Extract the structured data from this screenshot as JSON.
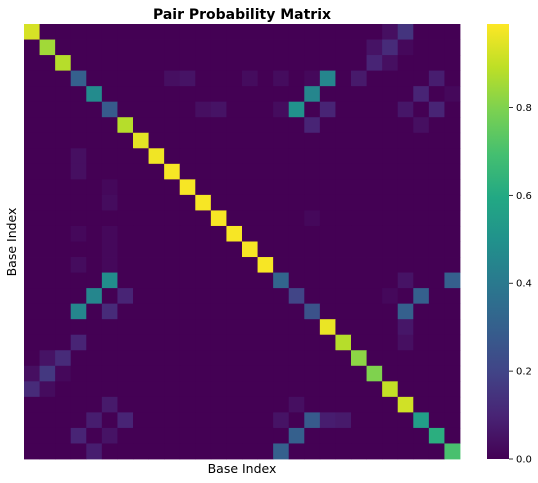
{
  "chart_data": {
    "type": "heatmap",
    "title": "Pair Probability Matrix",
    "xlabel": "Base Index",
    "ylabel": "Base Index",
    "size": 28,
    "colormap": "viridis",
    "vmin": 0,
    "vmax": 0.99,
    "colorbar_ticks": [
      {
        "value": 0.0,
        "label": "0.0"
      },
      {
        "value": 0.2,
        "label": "0.2"
      },
      {
        "value": 0.4,
        "label": "0.4"
      },
      {
        "value": 0.6,
        "label": "0.6"
      },
      {
        "value": 0.8,
        "label": "0.8"
      }
    ],
    "matrix": [
      [
        0.93,
        0,
        0,
        0,
        0,
        0,
        0,
        0,
        0,
        0,
        0,
        0,
        0,
        0,
        0,
        0,
        0,
        0,
        0,
        0,
        0,
        0,
        0,
        0.04,
        0.15,
        0,
        0,
        0
      ],
      [
        0,
        0.85,
        0,
        0,
        0,
        0,
        0,
        0,
        0,
        0,
        0,
        0,
        0,
        0,
        0,
        0,
        0,
        0,
        0,
        0,
        0,
        0,
        0.05,
        0.12,
        0.02,
        0,
        0,
        0
      ],
      [
        0,
        0,
        0.88,
        0,
        0,
        0,
        0,
        0,
        0,
        0,
        0,
        0,
        0,
        0,
        0,
        0,
        0,
        0,
        0,
        0,
        0,
        0,
        0.1,
        0.04,
        0,
        0,
        0,
        0
      ],
      [
        0,
        0,
        0,
        0.3,
        0,
        0,
        0,
        0,
        0,
        0.04,
        0.05,
        0,
        0,
        0,
        0.03,
        0,
        0.03,
        0,
        0.02,
        0.45,
        0,
        0.07,
        0,
        0,
        0,
        0,
        0.08,
        0
      ],
      [
        0,
        0,
        0,
        0,
        0.47,
        0,
        0,
        0,
        0,
        0,
        0,
        0,
        0,
        0,
        0,
        0,
        0,
        0,
        0.45,
        0,
        0,
        0,
        0,
        0,
        0,
        0.1,
        0,
        0.02
      ],
      [
        0,
        0,
        0,
        0,
        0,
        0.28,
        0,
        0,
        0,
        0,
        0,
        0.04,
        0.05,
        0,
        0,
        0,
        0.03,
        0.5,
        0,
        0.1,
        0,
        0,
        0,
        0,
        0.06,
        0,
        0.1,
        0
      ],
      [
        0,
        0,
        0,
        0,
        0,
        0,
        0.88,
        0,
        0,
        0,
        0,
        0,
        0,
        0,
        0,
        0,
        0,
        0,
        0.1,
        0,
        0,
        0,
        0,
        0,
        0,
        0.04,
        0,
        0
      ],
      [
        0,
        0,
        0,
        0,
        0,
        0,
        0,
        0.95,
        0,
        0,
        0,
        0,
        0,
        0,
        0,
        0,
        0,
        0,
        0,
        0,
        0,
        0,
        0,
        0,
        0,
        0,
        0,
        0
      ],
      [
        0,
        0,
        0,
        0.04,
        0,
        0,
        0,
        0,
        0.97,
        0,
        0,
        0,
        0,
        0,
        0,
        0,
        0,
        0,
        0,
        0,
        0,
        0,
        0,
        0,
        0,
        0,
        0,
        0
      ],
      [
        0,
        0,
        0,
        0.04,
        0,
        0,
        0,
        0,
        0,
        0.98,
        0,
        0,
        0,
        0,
        0,
        0,
        0,
        0,
        0,
        0,
        0,
        0,
        0,
        0,
        0,
        0,
        0,
        0
      ],
      [
        0,
        0,
        0,
        0,
        0,
        0.02,
        0,
        0,
        0,
        0,
        0.98,
        0,
        0,
        0,
        0,
        0,
        0,
        0,
        0,
        0,
        0,
        0,
        0,
        0,
        0,
        0,
        0,
        0
      ],
      [
        0,
        0,
        0,
        0,
        0,
        0.03,
        0,
        0,
        0,
        0,
        0,
        0.98,
        0,
        0,
        0,
        0,
        0,
        0,
        0,
        0,
        0,
        0,
        0,
        0,
        0,
        0,
        0,
        0
      ],
      [
        0,
        0,
        0,
        0,
        0,
        0,
        0,
        0,
        0,
        0,
        0,
        0,
        0.98,
        0,
        0,
        0,
        0,
        0,
        0.02,
        0,
        0,
        0,
        0,
        0,
        0,
        0,
        0,
        0
      ],
      [
        0,
        0,
        0,
        0.02,
        0,
        0.02,
        0,
        0,
        0,
        0,
        0,
        0,
        0,
        0.98,
        0,
        0,
        0,
        0,
        0,
        0,
        0,
        0,
        0,
        0,
        0,
        0,
        0,
        0
      ],
      [
        0,
        0,
        0,
        0,
        0,
        0.02,
        0,
        0,
        0,
        0,
        0,
        0,
        0,
        0,
        0.98,
        0,
        0,
        0,
        0,
        0,
        0,
        0,
        0,
        0,
        0,
        0,
        0,
        0
      ],
      [
        0,
        0,
        0,
        0.03,
        0,
        0.02,
        0,
        0,
        0,
        0,
        0,
        0,
        0,
        0,
        0,
        0.98,
        0,
        0,
        0,
        0,
        0,
        0,
        0,
        0,
        0,
        0,
        0,
        0
      ],
      [
        0,
        0,
        0,
        0,
        0,
        0.48,
        0,
        0,
        0,
        0,
        0,
        0,
        0,
        0,
        0,
        0,
        0.32,
        0,
        0,
        0,
        0,
        0,
        0,
        0,
        0.05,
        0,
        0,
        0.3
      ],
      [
        0,
        0,
        0,
        0,
        0.45,
        0,
        0.1,
        0,
        0,
        0,
        0,
        0,
        0,
        0,
        0,
        0,
        0,
        0.2,
        0,
        0,
        0,
        0,
        0,
        0.02,
        0,
        0.3,
        0,
        0
      ],
      [
        0,
        0,
        0,
        0.45,
        0,
        0.12,
        0,
        0,
        0,
        0,
        0,
        0,
        0,
        0,
        0,
        0,
        0,
        0,
        0.25,
        0,
        0,
        0,
        0,
        0,
        0.3,
        0,
        0,
        0
      ],
      [
        0,
        0,
        0,
        0,
        0,
        0,
        0,
        0,
        0,
        0,
        0,
        0,
        0,
        0,
        0,
        0,
        0,
        0,
        0,
        0.96,
        0,
        0,
        0,
        0,
        0.06,
        0,
        0,
        0
      ],
      [
        0,
        0,
        0,
        0.1,
        0,
        0,
        0,
        0,
        0,
        0,
        0,
        0,
        0,
        0,
        0,
        0,
        0,
        0,
        0,
        0,
        0.88,
        0,
        0,
        0,
        0.04,
        0,
        0,
        0
      ],
      [
        0,
        0.05,
        0.12,
        0,
        0,
        0,
        0,
        0,
        0,
        0,
        0,
        0,
        0,
        0,
        0,
        0,
        0,
        0,
        0,
        0,
        0,
        0.82,
        0,
        0,
        0,
        0,
        0,
        0
      ],
      [
        0.04,
        0.16,
        0.02,
        0,
        0,
        0,
        0,
        0,
        0,
        0,
        0,
        0,
        0,
        0,
        0,
        0,
        0,
        0,
        0,
        0,
        0,
        0,
        0.8,
        0,
        0,
        0,
        0,
        0
      ],
      [
        0.12,
        0.03,
        0,
        0,
        0,
        0,
        0,
        0,
        0,
        0,
        0,
        0,
        0,
        0,
        0,
        0,
        0,
        0,
        0,
        0,
        0,
        0,
        0,
        0.9,
        0,
        0,
        0,
        0
      ],
      [
        0,
        0,
        0,
        0,
        0,
        0.07,
        0,
        0,
        0,
        0,
        0,
        0,
        0,
        0,
        0,
        0,
        0,
        0.04,
        0,
        0,
        0,
        0,
        0,
        0,
        0.92,
        0,
        0,
        0
      ],
      [
        0,
        0,
        0,
        0,
        0.08,
        0,
        0.1,
        0,
        0,
        0,
        0,
        0,
        0,
        0,
        0,
        0,
        0.05,
        0,
        0.28,
        0.08,
        0.07,
        0,
        0,
        0,
        0,
        0.55,
        0,
        0
      ],
      [
        0,
        0,
        0,
        0.1,
        0,
        0.05,
        0,
        0,
        0,
        0,
        0,
        0,
        0,
        0,
        0,
        0,
        0,
        0.3,
        0,
        0,
        0,
        0,
        0,
        0,
        0,
        0,
        0.62,
        0
      ],
      [
        0,
        0,
        0,
        0,
        0.08,
        0,
        0,
        0,
        0,
        0,
        0,
        0,
        0,
        0,
        0,
        0,
        0.3,
        0,
        0,
        0,
        0,
        0,
        0,
        0,
        0,
        0,
        0,
        0.7
      ]
    ]
  }
}
